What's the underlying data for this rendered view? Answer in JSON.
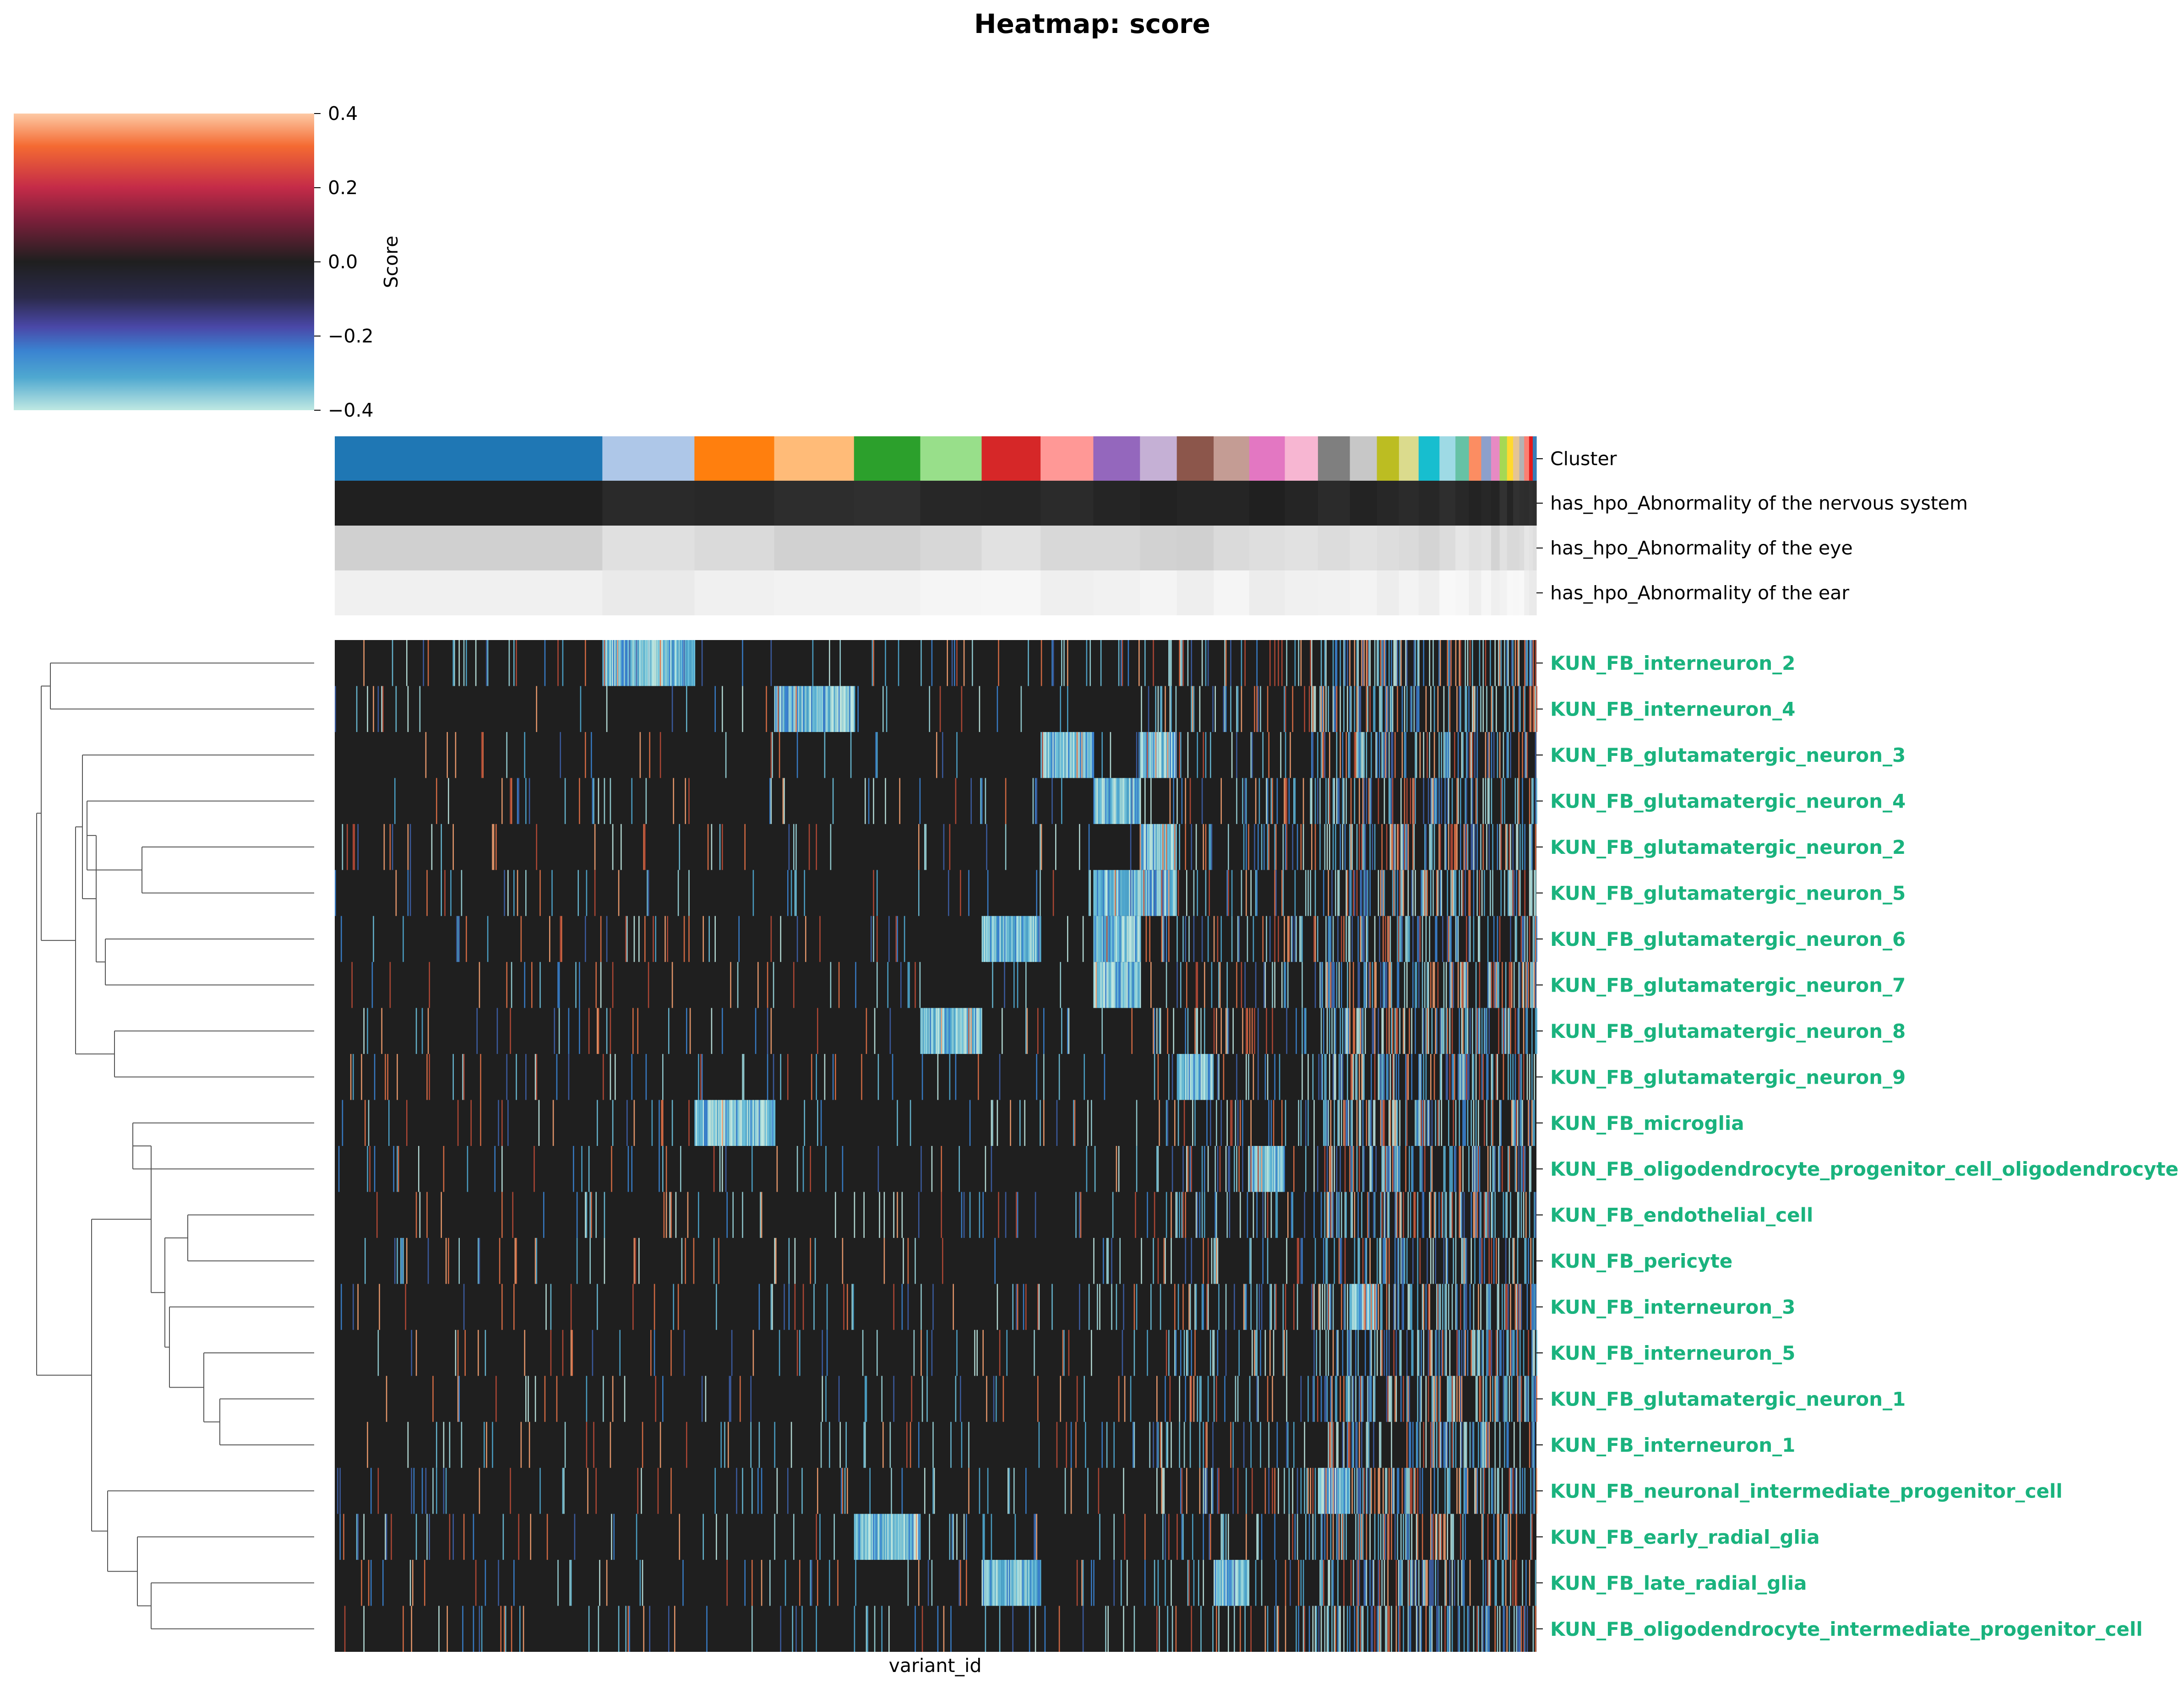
{
  "title": "Heatmap: score",
  "colorbar": {
    "label": "Score",
    "ticks": [
      "0.4",
      "0.2",
      "0.0",
      "−0.2",
      "−0.4"
    ],
    "tick_values": [
      0.4,
      0.2,
      0.0,
      -0.2,
      -0.4
    ],
    "colormap": "icefire",
    "stops": [
      "#fdc9a4",
      "#f46a32",
      "#c42b48",
      "#7a1f3a",
      "#1f1f1f",
      "#2b2a4a",
      "#4a48a8",
      "#3a83d1",
      "#4fa8d0",
      "#bfe8e2"
    ]
  },
  "annotation_rows": [
    {
      "label": "Cluster",
      "key": "cluster"
    },
    {
      "label": "has_hpo_Abnormality of the nervous system",
      "key": "nervous"
    },
    {
      "label": "has_hpo_Abnormality of the eye",
      "key": "eye"
    },
    {
      "label": "has_hpo_Abnormality of the ear",
      "key": "ear"
    }
  ],
  "cluster_colors": [
    "#1f77b4",
    "#aec7e8",
    "#ff7f0e",
    "#ffbb78",
    "#2ca02c",
    "#98df8a",
    "#d62728",
    "#ff9896",
    "#9467bd",
    "#c5b0d5",
    "#8c564b",
    "#c49c94",
    "#e377c2",
    "#f7b6d2",
    "#7f7f7f",
    "#c7c7c7",
    "#bcbd22",
    "#dbdb8d",
    "#17becf",
    "#9edae5",
    "#66c2a5",
    "#fc8d62",
    "#8da0cb",
    "#e78ac3",
    "#a6d854",
    "#ffd92f",
    "#e5c494",
    "#b3b3b3",
    "#fb8072",
    "#e41a1c",
    "#377eb8"
  ],
  "xlabel": "variant_id",
  "row_label_color": "#1ab37e",
  "chart_data": {
    "type": "heatmap",
    "title": "Heatmap: score",
    "xlabel": "variant_id",
    "colorbar_label": "Score",
    "vlim": [
      -0.4,
      0.4
    ],
    "clusters": [
      {
        "width": 0.218
      },
      {
        "width": 0.075
      },
      {
        "width": 0.065
      },
      {
        "width": 0.065
      },
      {
        "width": 0.054
      },
      {
        "width": 0.05
      },
      {
        "width": 0.048
      },
      {
        "width": 0.043
      },
      {
        "width": 0.038
      },
      {
        "width": 0.03
      },
      {
        "width": 0.03
      },
      {
        "width": 0.029
      },
      {
        "width": 0.029
      },
      {
        "width": 0.027
      },
      {
        "width": 0.026
      },
      {
        "width": 0.022
      },
      {
        "width": 0.018
      },
      {
        "width": 0.016
      },
      {
        "width": 0.017
      },
      {
        "width": 0.013
      },
      {
        "width": 0.011
      },
      {
        "width": 0.01
      },
      {
        "width": 0.008
      },
      {
        "width": 0.007
      },
      {
        "width": 0.006
      },
      {
        "width": 0.005
      },
      {
        "width": 0.005
      },
      {
        "width": 0.004
      },
      {
        "width": 0.004
      },
      {
        "width": 0.003
      },
      {
        "width": 0.003
      }
    ],
    "rows": [
      {
        "label": "KUN_FB_interneuron_2",
        "hot": [
          1
        ]
      },
      {
        "label": "KUN_FB_interneuron_4",
        "hot": [
          3
        ]
      },
      {
        "label": "KUN_FB_glutamatergic_neuron_3",
        "hot": [
          7,
          9
        ]
      },
      {
        "label": "KUN_FB_glutamatergic_neuron_4",
        "hot": [
          8
        ]
      },
      {
        "label": "KUN_FB_glutamatergic_neuron_2",
        "hot": [
          9
        ]
      },
      {
        "label": "KUN_FB_glutamatergic_neuron_5",
        "hot": [
          8,
          9
        ]
      },
      {
        "label": "KUN_FB_glutamatergic_neuron_6",
        "hot": [
          6,
          8
        ]
      },
      {
        "label": "KUN_FB_glutamatergic_neuron_7",
        "hot": [
          8
        ]
      },
      {
        "label": "KUN_FB_glutamatergic_neuron_8",
        "hot": [
          5
        ]
      },
      {
        "label": "KUN_FB_glutamatergic_neuron_9",
        "hot": [
          10
        ]
      },
      {
        "label": "KUN_FB_microglia",
        "hot": [
          2
        ]
      },
      {
        "label": "KUN_FB_oligodendrocyte_progenitor_cell_oligodendrocyte",
        "hot": [
          12
        ]
      },
      {
        "label": "KUN_FB_endothelial_cell",
        "hot": []
      },
      {
        "label": "KUN_FB_pericyte",
        "hot": []
      },
      {
        "label": "KUN_FB_interneuron_3",
        "hot": [
          15
        ]
      },
      {
        "label": "KUN_FB_interneuron_5",
        "hot": []
      },
      {
        "label": "KUN_FB_glutamatergic_neuron_1",
        "hot": []
      },
      {
        "label": "KUN_FB_interneuron_1",
        "hot": []
      },
      {
        "label": "KUN_FB_neuronal_intermediate_progenitor_cell",
        "hot": [
          14
        ]
      },
      {
        "label": "KUN_FB_early_radial_glia",
        "hot": [
          4
        ]
      },
      {
        "label": "KUN_FB_late_radial_glia",
        "hot": [
          6,
          11
        ]
      },
      {
        "label": "KUN_FB_oligodendrocyte_intermediate_progenitor_cell",
        "hot": []
      }
    ]
  }
}
